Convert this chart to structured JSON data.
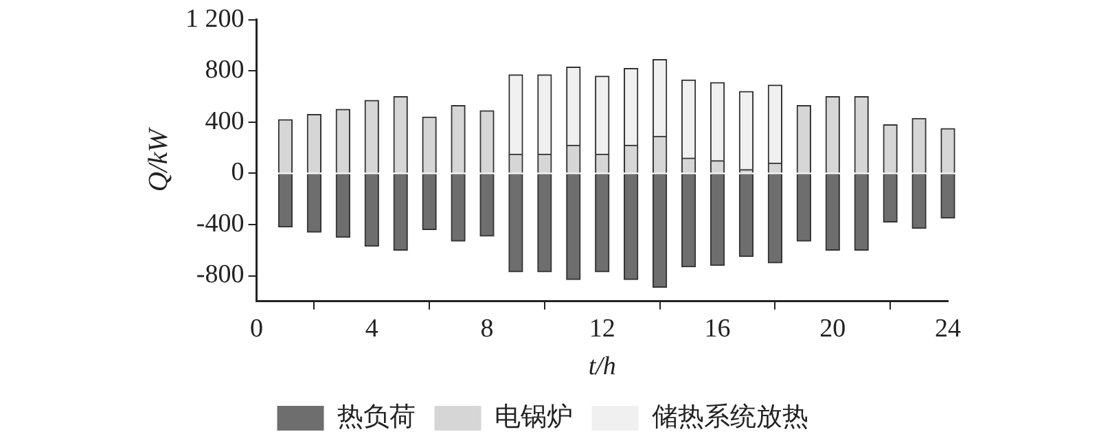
{
  "chart_data": {
    "type": "bar",
    "stacked": true,
    "xlabel": "t/h",
    "ylabel": "Q/kW",
    "x": [
      1,
      2,
      3,
      4,
      5,
      6,
      7,
      8,
      9,
      10,
      11,
      12,
      13,
      14,
      15,
      16,
      17,
      18,
      19,
      20,
      21,
      22,
      23,
      24
    ],
    "xlim": [
      0,
      24
    ],
    "xticks": [
      0,
      4,
      8,
      12,
      16,
      20,
      24
    ],
    "ylim": [
      -1000,
      1200
    ],
    "yticks": [
      -800,
      -400,
      0,
      400,
      800,
      {
        "value": 1200,
        "label": "1 200"
      }
    ],
    "grid": false,
    "legend": "bottom",
    "series": [
      {
        "name": "热负荷",
        "color": "#6e6e6e",
        "values": [
          -420,
          -460,
          -500,
          -570,
          -600,
          -440,
          -530,
          -490,
          -770,
          -770,
          -830,
          -770,
          -830,
          -890,
          -730,
          -720,
          -650,
          -700,
          -530,
          -600,
          -600,
          -380,
          -430,
          -350
        ]
      },
      {
        "name": "电锅炉",
        "color": "#d6d6d6",
        "values": [
          420,
          460,
          500,
          570,
          600,
          440,
          530,
          490,
          150,
          150,
          220,
          150,
          220,
          290,
          120,
          100,
          30,
          80,
          530,
          600,
          600,
          380,
          430,
          350
        ]
      },
      {
        "name": "储热系统放热",
        "color": "#f0f0f0",
        "values": [
          null,
          null,
          null,
          null,
          null,
          null,
          null,
          null,
          620,
          620,
          610,
          610,
          600,
          600,
          610,
          610,
          610,
          610,
          null,
          null,
          null,
          null,
          null,
          null
        ]
      }
    ]
  }
}
